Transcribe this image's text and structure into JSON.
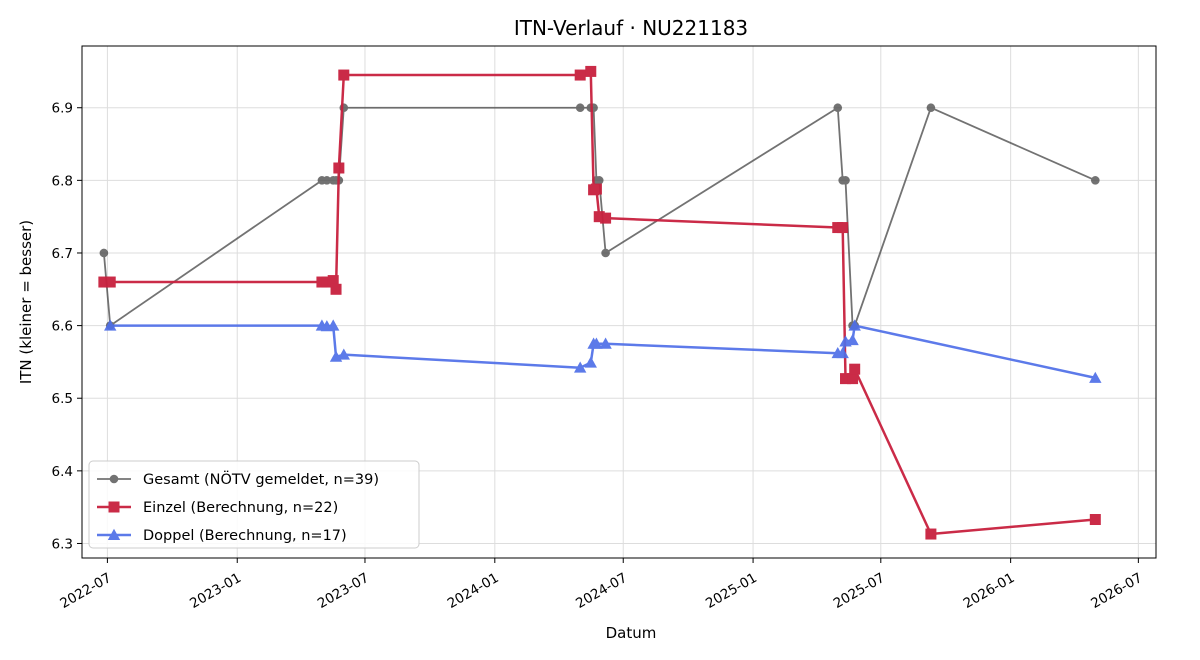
{
  "chart_data": {
    "type": "line",
    "title": "ITN-Verlauf · NU221183",
    "xlabel": "Datum",
    "ylabel": "ITN  (kleiner = besser)",
    "x_type": "date",
    "xlim": [
      "2022-05-26",
      "2026-07-26"
    ],
    "ylim": [
      6.28,
      6.985
    ],
    "x_ticks": [
      "2022-07-01",
      "2023-01-01",
      "2023-07-01",
      "2024-01-01",
      "2024-07-01",
      "2025-01-01",
      "2025-07-01",
      "2026-01-01",
      "2026-07-01"
    ],
    "x_tick_labels": [
      "2022-07",
      "2023-01",
      "2023-07",
      "2024-01",
      "2024-07",
      "2025-01",
      "2025-07",
      "2026-01",
      "2026-07"
    ],
    "y_ticks": [
      6.3,
      6.4,
      6.5,
      6.6,
      6.7,
      6.8,
      6.9
    ],
    "y_tick_labels": [
      "6.3",
      "6.4",
      "6.5",
      "6.6",
      "6.7",
      "6.8",
      "6.9"
    ],
    "grid": true,
    "legend_position": "lower-left",
    "series": [
      {
        "name": "Gesamt (NÖTV gemeldet, n=39)",
        "color": "#444444",
        "marker": "circle",
        "points": [
          {
            "x": "2022-06-26",
            "y": 6.7
          },
          {
            "x": "2022-07-05",
            "y": 6.6
          },
          {
            "x": "2023-05-01",
            "y": 6.8
          },
          {
            "x": "2023-05-08",
            "y": 6.8
          },
          {
            "x": "2023-05-17",
            "y": 6.8
          },
          {
            "x": "2023-05-21",
            "y": 6.8
          },
          {
            "x": "2023-05-25",
            "y": 6.8
          },
          {
            "x": "2023-06-01",
            "y": 6.9
          },
          {
            "x": "2024-05-01",
            "y": 6.9
          },
          {
            "x": "2024-05-16",
            "y": 6.9
          },
          {
            "x": "2024-05-20",
            "y": 6.9
          },
          {
            "x": "2024-05-24",
            "y": 6.8
          },
          {
            "x": "2024-05-28",
            "y": 6.8
          },
          {
            "x": "2024-06-06",
            "y": 6.7
          },
          {
            "x": "2025-05-01",
            "y": 6.9
          },
          {
            "x": "2025-05-08",
            "y": 6.8
          },
          {
            "x": "2025-05-12",
            "y": 6.8
          },
          {
            "x": "2025-05-22",
            "y": 6.6
          },
          {
            "x": "2025-05-25",
            "y": 6.6
          },
          {
            "x": "2025-09-10",
            "y": 6.9
          },
          {
            "x": "2026-05-01",
            "y": 6.8
          }
        ]
      },
      {
        "name": "Einzel (Berechnung, n=22)",
        "color": "#c8203e",
        "marker": "square",
        "points": [
          {
            "x": "2022-06-26",
            "y": 6.66
          },
          {
            "x": "2022-07-05",
            "y": 6.66
          },
          {
            "x": "2023-05-01",
            "y": 6.66
          },
          {
            "x": "2023-05-08",
            "y": 6.66
          },
          {
            "x": "2023-05-17",
            "y": 6.662
          },
          {
            "x": "2023-05-21",
            "y": 6.65
          },
          {
            "x": "2023-05-25",
            "y": 6.817
          },
          {
            "x": "2023-06-01",
            "y": 6.945
          },
          {
            "x": "2024-05-01",
            "y": 6.945
          },
          {
            "x": "2024-05-16",
            "y": 6.95
          },
          {
            "x": "2024-05-20",
            "y": 6.787
          },
          {
            "x": "2024-05-24",
            "y": 6.788
          },
          {
            "x": "2024-05-28",
            "y": 6.75
          },
          {
            "x": "2024-06-06",
            "y": 6.748
          },
          {
            "x": "2025-05-01",
            "y": 6.735
          },
          {
            "x": "2025-05-08",
            "y": 6.735
          },
          {
            "x": "2025-05-12",
            "y": 6.527
          },
          {
            "x": "2025-05-22",
            "y": 6.527
          },
          {
            "x": "2025-05-25",
            "y": 6.54
          },
          {
            "x": "2025-09-10",
            "y": 6.313
          },
          {
            "x": "2026-05-01",
            "y": 6.333
          }
        ]
      },
      {
        "name": "Doppel (Berechnung, n=17)",
        "color": "#4f6fe8",
        "marker": "triangle",
        "points": [
          {
            "x": "2022-07-05",
            "y": 6.6
          },
          {
            "x": "2023-05-01",
            "y": 6.6
          },
          {
            "x": "2023-05-08",
            "y": 6.599
          },
          {
            "x": "2023-05-17",
            "y": 6.6
          },
          {
            "x": "2023-05-21",
            "y": 6.557
          },
          {
            "x": "2023-06-01",
            "y": 6.56
          },
          {
            "x": "2024-05-01",
            "y": 6.542
          },
          {
            "x": "2024-05-16",
            "y": 6.549
          },
          {
            "x": "2024-05-20",
            "y": 6.575
          },
          {
            "x": "2024-05-24",
            "y": 6.575
          },
          {
            "x": "2024-06-06",
            "y": 6.575
          },
          {
            "x": "2025-05-01",
            "y": 6.562
          },
          {
            "x": "2025-05-08",
            "y": 6.562
          },
          {
            "x": "2025-05-12",
            "y": 6.578
          },
          {
            "x": "2025-05-22",
            "y": 6.58
          },
          {
            "x": "2025-05-25",
            "y": 6.6
          },
          {
            "x": "2026-05-01",
            "y": 6.528
          }
        ]
      }
    ]
  }
}
